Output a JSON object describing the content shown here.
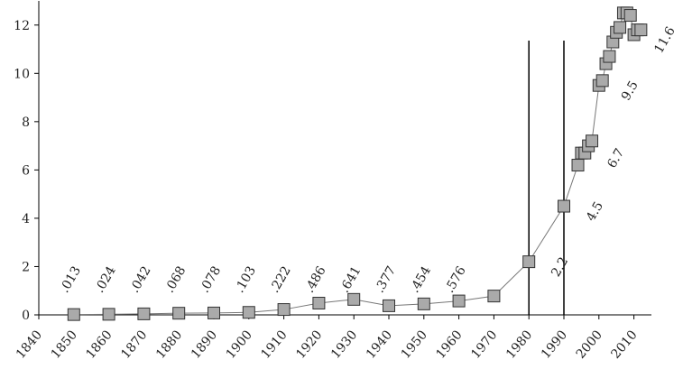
{
  "chart_data": {
    "type": "line",
    "x": [
      1850,
      1860,
      1870,
      1880,
      1890,
      1900,
      1910,
      1920,
      1930,
      1940,
      1950,
      1960,
      1970,
      1980,
      1990,
      1994,
      1995,
      1996,
      1997,
      1998,
      2000,
      2001,
      2002,
      2003,
      2004,
      2005,
      2006,
      2007,
      2008,
      2009,
      2010,
      2011,
      2012
    ],
    "values": [
      0.013,
      0.024,
      0.042,
      0.068,
      0.078,
      0.103,
      0.222,
      0.486,
      0.641,
      0.377,
      0.454,
      0.576,
      0.78,
      2.2,
      4.5,
      6.2,
      6.7,
      6.7,
      7.0,
      7.2,
      9.5,
      9.7,
      10.4,
      10.7,
      11.3,
      11.7,
      11.9,
      12.5,
      12.5,
      12.4,
      11.6,
      11.8,
      11.8
    ],
    "value_labels": [
      ".013",
      ".024",
      ".042",
      ".068",
      ".078",
      ".103",
      ".222",
      ".486",
      ".641",
      ".377",
      ".454",
      ".576",
      null,
      "2.2",
      "4.5",
      null,
      null,
      "6.7",
      null,
      null,
      "9.5",
      null,
      null,
      null,
      null,
      null,
      null,
      null,
      null,
      null,
      "11.6",
      null,
      null
    ],
    "color": "#aaaaaa",
    "line_color": "#777777",
    "xlim": [
      1840,
      2015
    ],
    "xticks": [
      1840,
      1850,
      1860,
      1870,
      1880,
      1890,
      1900,
      1910,
      1920,
      1930,
      1940,
      1950,
      1960,
      1970,
      1980,
      1990,
      2000,
      2010
    ],
    "ylim": [
      0,
      13
    ],
    "yticks": [
      0,
      2,
      4,
      6,
      8,
      10,
      12
    ],
    "vlines": [
      1980,
      1990
    ]
  }
}
